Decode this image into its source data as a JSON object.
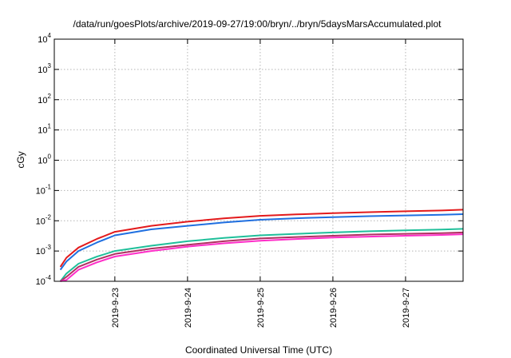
{
  "chart_data": {
    "type": "line",
    "title": "/data/run/goesPlots/archive/2019-09-27/19:00/bryn/../bryn/5daysMarsAccumulated.plot",
    "xlabel": "Coordinated Universal Time (UTC)",
    "ylabel": "cGy",
    "yscale": "log",
    "ylim": [
      0.0001,
      10000
    ],
    "xlim": [
      "2019-09-22T04:00",
      "2019-09-27T19:00"
    ],
    "grid": true,
    "legend": "none",
    "x_ticks": [
      {
        "x": "2019-09-23T00:00",
        "label": "2019-9-23"
      },
      {
        "x": "2019-09-24T00:00",
        "label": "2019-9-24"
      },
      {
        "x": "2019-09-25T00:00",
        "label": "2019-9-25"
      },
      {
        "x": "2019-09-26T00:00",
        "label": "2019-9-26"
      },
      {
        "x": "2019-09-27T00:00",
        "label": "2019-9-27"
      }
    ],
    "y_ticks": [
      {
        "value": 0.0001,
        "base": "10",
        "exp": "-4"
      },
      {
        "value": 0.001,
        "base": "10",
        "exp": "-3"
      },
      {
        "value": 0.01,
        "base": "10",
        "exp": "-2"
      },
      {
        "value": 0.1,
        "base": "10",
        "exp": "-1"
      },
      {
        "value": 1,
        "base": "10",
        "exp": "0"
      },
      {
        "value": 10,
        "base": "10",
        "exp": "1"
      },
      {
        "value": 100,
        "base": "10",
        "exp": "2"
      },
      {
        "value": 1000,
        "base": "10",
        "exp": "3"
      },
      {
        "value": 10000,
        "base": "10",
        "exp": "4"
      }
    ],
    "x": [
      "2019-09-22T06:00",
      "2019-09-22T08:00",
      "2019-09-22T12:00",
      "2019-09-22T18:00",
      "2019-09-23T00:00",
      "2019-09-23T12:00",
      "2019-09-24T00:00",
      "2019-09-24T12:00",
      "2019-09-25T00:00",
      "2019-09-25T12:00",
      "2019-09-26T00:00",
      "2019-09-26T12:00",
      "2019-09-27T00:00",
      "2019-09-27T12:00",
      "2019-09-27T19:00"
    ],
    "series": [
      {
        "color": "#e31a1c",
        "values": [
          0.0003,
          0.0006,
          0.0013,
          0.0025,
          0.0043,
          0.0068,
          0.0093,
          0.012,
          0.0145,
          0.0162,
          0.0178,
          0.0192,
          0.0205,
          0.0218,
          0.0232
        ]
      },
      {
        "color": "#1f6fe0",
        "values": [
          0.00024,
          0.00045,
          0.001,
          0.0019,
          0.0033,
          0.0052,
          0.0068,
          0.0088,
          0.0108,
          0.0121,
          0.0132,
          0.0142,
          0.015,
          0.0157,
          0.0165
        ]
      },
      {
        "color": "#1fbf9a",
        "values": [
          0.0001,
          0.00018,
          0.00038,
          0.00065,
          0.001,
          0.0015,
          0.0021,
          0.0027,
          0.0033,
          0.0037,
          0.0041,
          0.0045,
          0.0048,
          0.0051,
          0.0054
        ]
      },
      {
        "color": "#b03060",
        "values": [
          8e-05,
          0.00014,
          0.0003,
          0.00052,
          0.0008,
          0.0012,
          0.0016,
          0.0021,
          0.0026,
          0.0029,
          0.0032,
          0.0035,
          0.0037,
          0.0039,
          0.0041
        ]
      },
      {
        "color": "#ff2dc8",
        "values": [
          6e-05,
          0.00011,
          0.00024,
          0.00042,
          0.00066,
          0.001,
          0.0014,
          0.0018,
          0.0022,
          0.0025,
          0.0028,
          0.003,
          0.0032,
          0.0034,
          0.0036
        ]
      }
    ]
  }
}
